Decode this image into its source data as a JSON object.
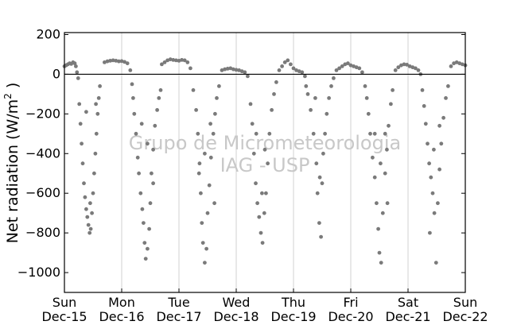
{
  "chart_data": {
    "type": "scatter",
    "title": "",
    "xlabel": "",
    "ylabel": "Net radiation (W/m",
    "ylabel_superscript": "2",
    "ylabel_suffix": " )",
    "ylim": [
      -1100,
      210
    ],
    "yticks": [
      200,
      0,
      -200,
      -400,
      -600,
      -800,
      -1000
    ],
    "ytick_labels": [
      "200",
      "0",
      "−200",
      "−400",
      "−600",
      "−800",
      "−1000"
    ],
    "xlim": [
      0,
      7
    ],
    "xtick_labels": [
      {
        "day": "Sun",
        "date": "Dec-15"
      },
      {
        "day": "Mon",
        "date": "Dec-16"
      },
      {
        "day": "Tue",
        "date": "Dec-17"
      },
      {
        "day": "Wed",
        "date": "Dec-18"
      },
      {
        "day": "Thu",
        "date": "Dec-19"
      },
      {
        "day": "Fri",
        "date": "Dec-20"
      },
      {
        "day": "Sat",
        "date": "Dec-21"
      },
      {
        "day": "Sun",
        "date": "Dec-22"
      }
    ],
    "vertical_grid": true,
    "zero_line": true,
    "marker_color": "#7a7a7a",
    "watermark": [
      "Grupo de Micrometeorologia",
      "IAG - USP"
    ],
    "series": [
      {
        "points": [
          [
            0.0,
            40
          ],
          [
            0.03,
            45
          ],
          [
            0.06,
            50
          ],
          [
            0.09,
            55
          ],
          [
            0.12,
            52
          ],
          [
            0.15,
            60
          ],
          [
            0.18,
            55
          ],
          [
            0.2,
            40
          ],
          [
            0.22,
            10
          ],
          [
            0.24,
            -20
          ],
          [
            0.26,
            -150
          ],
          [
            0.28,
            -250
          ],
          [
            0.3,
            -350
          ],
          [
            0.32,
            -450
          ],
          [
            0.34,
            -550
          ],
          [
            0.36,
            -620
          ],
          [
            0.38,
            -680
          ],
          [
            0.4,
            -720
          ],
          [
            0.42,
            -760
          ],
          [
            0.44,
            -800
          ],
          [
            0.46,
            -780
          ],
          [
            0.48,
            -700
          ],
          [
            0.5,
            -600
          ],
          [
            0.52,
            -500
          ],
          [
            0.54,
            -400
          ],
          [
            0.56,
            -300
          ],
          [
            0.58,
            -200
          ],
          [
            0.6,
            -120
          ],
          [
            0.62,
            -60
          ],
          [
            0.38,
            -190
          ],
          [
            0.45,
            -650
          ],
          [
            0.55,
            -150
          ],
          [
            0.7,
            60
          ],
          [
            0.75,
            65
          ],
          [
            0.8,
            68
          ],
          [
            0.85,
            70
          ],
          [
            0.9,
            68
          ],
          [
            0.95,
            65
          ],
          [
            1.0,
            66
          ],
          [
            1.05,
            62
          ],
          [
            1.1,
            55
          ],
          [
            1.15,
            20
          ],
          [
            1.18,
            -50
          ],
          [
            1.2,
            -120
          ],
          [
            1.22,
            -200
          ],
          [
            1.25,
            -300
          ],
          [
            1.28,
            -420
          ],
          [
            1.3,
            -500
          ],
          [
            1.33,
            -600
          ],
          [
            1.36,
            -680
          ],
          [
            1.38,
            -750
          ],
          [
            1.4,
            -850
          ],
          [
            1.42,
            -930
          ],
          [
            1.45,
            -880
          ],
          [
            1.48,
            -780
          ],
          [
            1.5,
            -650
          ],
          [
            1.52,
            -500
          ],
          [
            1.55,
            -380
          ],
          [
            1.58,
            -260
          ],
          [
            1.62,
            -180
          ],
          [
            1.65,
            -120
          ],
          [
            1.68,
            -80
          ],
          [
            1.35,
            -250
          ],
          [
            1.45,
            -350
          ],
          [
            1.55,
            -550
          ],
          [
            1.7,
            50
          ],
          [
            1.75,
            60
          ],
          [
            1.8,
            70
          ],
          [
            1.85,
            75
          ],
          [
            1.9,
            72
          ],
          [
            1.95,
            70
          ],
          [
            2.0,
            68
          ],
          [
            2.05,
            72
          ],
          [
            2.1,
            70
          ],
          [
            2.15,
            60
          ],
          [
            2.2,
            30
          ],
          [
            2.25,
            -80
          ],
          [
            2.3,
            -180
          ],
          [
            2.33,
            -300
          ],
          [
            2.36,
            -450
          ],
          [
            2.38,
            -600
          ],
          [
            2.4,
            -750
          ],
          [
            2.42,
            -850
          ],
          [
            2.45,
            -950
          ],
          [
            2.48,
            -880
          ],
          [
            2.5,
            -700
          ],
          [
            2.53,
            -560
          ],
          [
            2.56,
            -420
          ],
          [
            2.6,
            -300
          ],
          [
            2.63,
            -200
          ],
          [
            2.66,
            -120
          ],
          [
            2.7,
            -60
          ],
          [
            2.35,
            -500
          ],
          [
            2.45,
            -400
          ],
          [
            2.55,
            -250
          ],
          [
            2.62,
            -650
          ],
          [
            2.75,
            20
          ],
          [
            2.8,
            25
          ],
          [
            2.85,
            28
          ],
          [
            2.9,
            30
          ],
          [
            2.95,
            25
          ],
          [
            3.0,
            22
          ],
          [
            3.05,
            20
          ],
          [
            3.1,
            15
          ],
          [
            3.15,
            10
          ],
          [
            3.2,
            -10
          ],
          [
            3.25,
            -150
          ],
          [
            3.28,
            -250
          ],
          [
            3.31,
            -400
          ],
          [
            3.34,
            -550
          ],
          [
            3.37,
            -650
          ],
          [
            3.4,
            -720
          ],
          [
            3.43,
            -800
          ],
          [
            3.46,
            -850
          ],
          [
            3.49,
            -700
          ],
          [
            3.52,
            -600
          ],
          [
            3.55,
            -450
          ],
          [
            3.58,
            -300
          ],
          [
            3.62,
            -180
          ],
          [
            3.66,
            -100
          ],
          [
            3.7,
            -40
          ],
          [
            3.35,
            -300
          ],
          [
            3.45,
            -600
          ],
          [
            3.5,
            -380
          ],
          [
            3.75,
            20
          ],
          [
            3.8,
            40
          ],
          [
            3.85,
            60
          ],
          [
            3.9,
            70
          ],
          [
            3.95,
            50
          ],
          [
            4.0,
            30
          ],
          [
            4.05,
            20
          ],
          [
            4.1,
            15
          ],
          [
            4.15,
            10
          ],
          [
            4.2,
            -10
          ],
          [
            4.22,
            -60
          ],
          [
            4.25,
            -100
          ],
          [
            4.3,
            -180
          ],
          [
            4.35,
            -300
          ],
          [
            4.4,
            -450
          ],
          [
            4.42,
            -600
          ],
          [
            4.45,
            -750
          ],
          [
            4.48,
            -820
          ],
          [
            4.5,
            -550
          ],
          [
            4.52,
            -400
          ],
          [
            4.55,
            -300
          ],
          [
            4.58,
            -200
          ],
          [
            4.62,
            -120
          ],
          [
            4.66,
            -60
          ],
          [
            4.7,
            -20
          ],
          [
            4.38,
            -120
          ],
          [
            4.46,
            -520
          ],
          [
            4.75,
            20
          ],
          [
            4.8,
            30
          ],
          [
            4.85,
            40
          ],
          [
            4.9,
            50
          ],
          [
            4.95,
            55
          ],
          [
            5.0,
            45
          ],
          [
            5.05,
            40
          ],
          [
            5.1,
            35
          ],
          [
            5.15,
            30
          ],
          [
            5.2,
            10
          ],
          [
            5.25,
            -60
          ],
          [
            5.28,
            -120
          ],
          [
            5.31,
            -200
          ],
          [
            5.34,
            -300
          ],
          [
            5.38,
            -420
          ],
          [
            5.42,
            -520
          ],
          [
            5.45,
            -650
          ],
          [
            5.48,
            -780
          ],
          [
            5.5,
            -900
          ],
          [
            5.53,
            -950
          ],
          [
            5.56,
            -700
          ],
          [
            5.6,
            -500
          ],
          [
            5.63,
            -380
          ],
          [
            5.66,
            -260
          ],
          [
            5.7,
            -150
          ],
          [
            5.73,
            -80
          ],
          [
            5.42,
            -300
          ],
          [
            5.52,
            -450
          ],
          [
            5.6,
            -300
          ],
          [
            5.64,
            -650
          ],
          [
            5.78,
            20
          ],
          [
            5.83,
            35
          ],
          [
            5.88,
            45
          ],
          [
            5.93,
            50
          ],
          [
            5.98,
            48
          ],
          [
            6.03,
            40
          ],
          [
            6.08,
            35
          ],
          [
            6.13,
            30
          ],
          [
            6.18,
            20
          ],
          [
            6.22,
            0
          ],
          [
            6.25,
            -80
          ],
          [
            6.28,
            -160
          ],
          [
            6.31,
            -250
          ],
          [
            6.34,
            -350
          ],
          [
            6.37,
            -450
          ],
          [
            6.4,
            -520
          ],
          [
            6.43,
            -600
          ],
          [
            6.46,
            -700
          ],
          [
            6.49,
            -950
          ],
          [
            6.52,
            -650
          ],
          [
            6.55,
            -480
          ],
          [
            6.58,
            -350
          ],
          [
            6.62,
            -220
          ],
          [
            6.66,
            -120
          ],
          [
            6.7,
            -60
          ],
          [
            6.38,
            -800
          ],
          [
            6.45,
            -380
          ],
          [
            6.55,
            -260
          ],
          [
            6.75,
            40
          ],
          [
            6.8,
            55
          ],
          [
            6.85,
            60
          ],
          [
            6.9,
            55
          ],
          [
            6.95,
            50
          ],
          [
            7.0,
            45
          ]
        ]
      }
    ]
  }
}
